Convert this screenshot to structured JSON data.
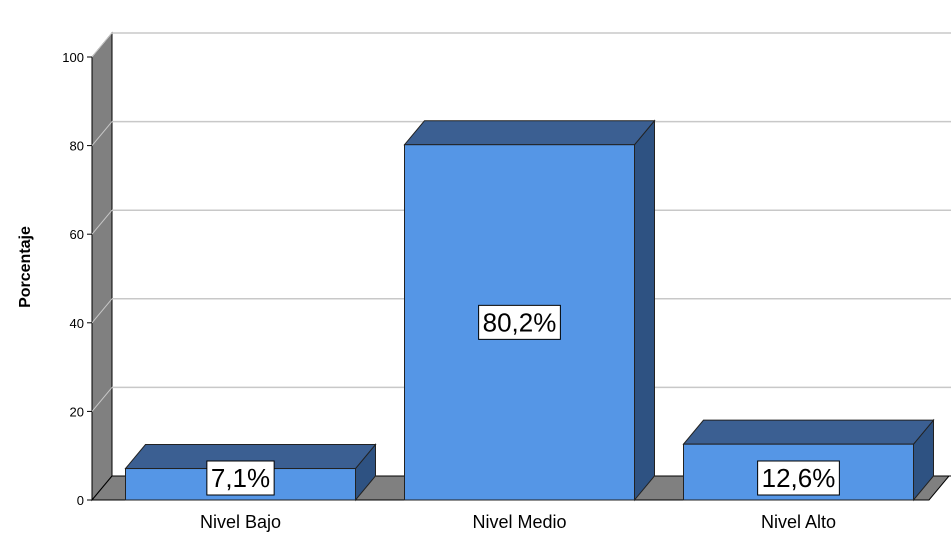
{
  "chart_data": {
    "type": "bar",
    "categories": [
      "Nivel Bajo",
      "Nivel Medio",
      "Nivel Alto"
    ],
    "values": [
      7.1,
      80.2,
      12.6
    ],
    "data_labels": [
      "7,1%",
      "80,2%",
      "12,6%"
    ],
    "ylabel": "Porcentaje",
    "xlabel": "",
    "ylim": [
      0,
      100
    ],
    "yticks": [
      "0",
      "20",
      "40",
      "60",
      "80",
      "100"
    ],
    "grid": true,
    "style": "3d",
    "colors": {
      "bar_front": "#5596E6",
      "bar_top": "#3B5F92",
      "bar_side": "#2E5282",
      "back_wall": "#ffffff",
      "left_wall": "#808080",
      "floor": "#808080",
      "gridline": "#c8c8c8"
    }
  }
}
